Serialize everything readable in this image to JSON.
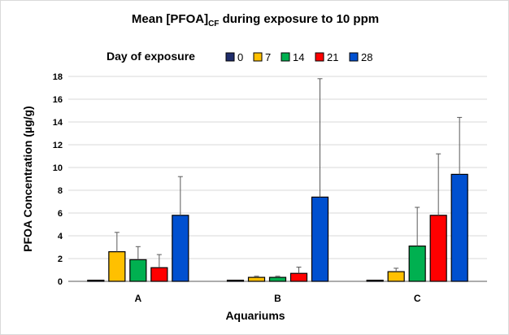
{
  "chart_data": {
    "type": "bar",
    "title_main": "Mean [PFOA]",
    "title_sub": "CF",
    "title_rest": " during exposure to 10 ppm",
    "legend_title": "Day of exposure",
    "xlabel": "Aquariums",
    "ylabel": "PFOA  Concentration (µg/g)",
    "ylim": [
      0,
      18
    ],
    "yticks": [
      0,
      2,
      4,
      6,
      8,
      10,
      12,
      14,
      16,
      18
    ],
    "grid": true,
    "legend_position": "top",
    "categories": [
      "A",
      "B",
      "C"
    ],
    "series": [
      {
        "name": "0",
        "color": "#1f2d6b",
        "values": [
          0.1,
          0.1,
          0.1
        ],
        "err": [
          0,
          0,
          0
        ]
      },
      {
        "name": "7",
        "color": "#ffc000",
        "values": [
          2.6,
          0.35,
          0.85
        ],
        "err": [
          1.7,
          0.1,
          0.3
        ]
      },
      {
        "name": "14",
        "color": "#00b050",
        "values": [
          1.9,
          0.35,
          3.1
        ],
        "err": [
          1.15,
          0.1,
          3.4
        ]
      },
      {
        "name": "21",
        "color": "#ff0000",
        "values": [
          1.2,
          0.7,
          5.8
        ],
        "err": [
          1.15,
          0.55,
          5.4
        ]
      },
      {
        "name": "28",
        "color": "#0050d0",
        "values": [
          5.8,
          7.4,
          9.4
        ],
        "err": [
          3.4,
          10.4,
          5.0
        ]
      }
    ]
  }
}
